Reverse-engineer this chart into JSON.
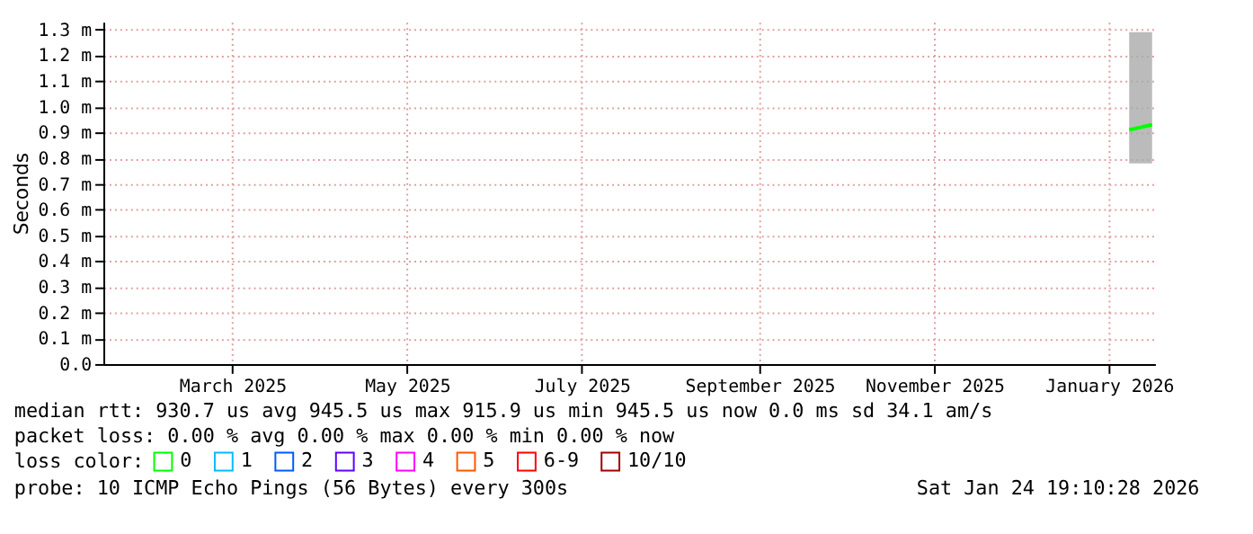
{
  "chart_data": {
    "type": "line",
    "ylabel": "Seconds",
    "x": [
      "2026-01-08",
      "2026-01-12",
      "2026-01-16"
    ],
    "series": [
      {
        "name": "0",
        "color": "#00ff00",
        "values": [
          0.91,
          0.92,
          0.93
        ],
        "lower": [
          0.78,
          0.78,
          0.78
        ],
        "upper": [
          1.29,
          1.29,
          1.29
        ]
      },
      {
        "name": "1",
        "color": "#00bbff",
        "values": [
          null,
          null,
          null
        ]
      },
      {
        "name": "2",
        "color": "#0059ff",
        "values": [
          null,
          null,
          null
        ]
      },
      {
        "name": "3",
        "color": "#5e00ff",
        "values": [
          null,
          null,
          null
        ]
      },
      {
        "name": "4",
        "color": "#ff00ff",
        "values": [
          null,
          null,
          null
        ]
      },
      {
        "name": "5",
        "color": "#ff5500",
        "values": [
          null,
          null,
          null
        ]
      },
      {
        "name": "6-9",
        "color": "#ff0000",
        "values": [
          null,
          null,
          null
        ]
      },
      {
        "name": "10/10",
        "color": "#a10000",
        "values": [
          null,
          null,
          null
        ]
      }
    ],
    "legend_title": "loss color:",
    "legend": "bottom left",
    "xlim": [
      "2025-01-15",
      "2026-01-17"
    ],
    "xticks": [
      {
        "value": "2025-03-01",
        "label": "March 2025"
      },
      {
        "value": "2025-05-01",
        "label": "May 2025"
      },
      {
        "value": "2025-07-01",
        "label": "July 2025"
      },
      {
        "value": "2025-09-01",
        "label": "September 2025"
      },
      {
        "value": "2025-11-01",
        "label": "November 2025"
      },
      {
        "value": "2026-01-01",
        "label": "January 2026"
      }
    ],
    "ylim": [
      0,
      1.33
    ],
    "yticks": [
      {
        "value": 0,
        "label": "0.0"
      },
      {
        "value": 0.1,
        "label": "0.1 m"
      },
      {
        "value": 0.2,
        "label": "0.2 m"
      },
      {
        "value": 0.3,
        "label": "0.3 m"
      },
      {
        "value": 0.4,
        "label": "0.4 m"
      },
      {
        "value": 0.5,
        "label": "0.5 m"
      },
      {
        "value": 0.6,
        "label": "0.6 m"
      },
      {
        "value": 0.7,
        "label": "0.7 m"
      },
      {
        "value": 0.8,
        "label": "0.8 m"
      },
      {
        "value": 0.9,
        "label": "0.9 m"
      },
      {
        "value": 1.0,
        "label": "1.0 m"
      },
      {
        "value": 1.1,
        "label": "1.1 m"
      },
      {
        "value": 1.2,
        "label": "1.2 m"
      },
      {
        "value": 1.3,
        "label": "1.3 m"
      }
    ],
    "grid": true,
    "annotations": [
      "median rtt:  930.7 us avg  945.5 us max  915.9 us min  945.5 us now  0.0 ms sd  34.1   am/s",
      "packet loss: 0.00 % avg  0.00 % max  0.00 % min  0.00 % now",
      "probe:       10 ICMP Echo Pings (56 Bytes) every 300s",
      "Sat Jan 24 19:10:28 2026"
    ]
  }
}
